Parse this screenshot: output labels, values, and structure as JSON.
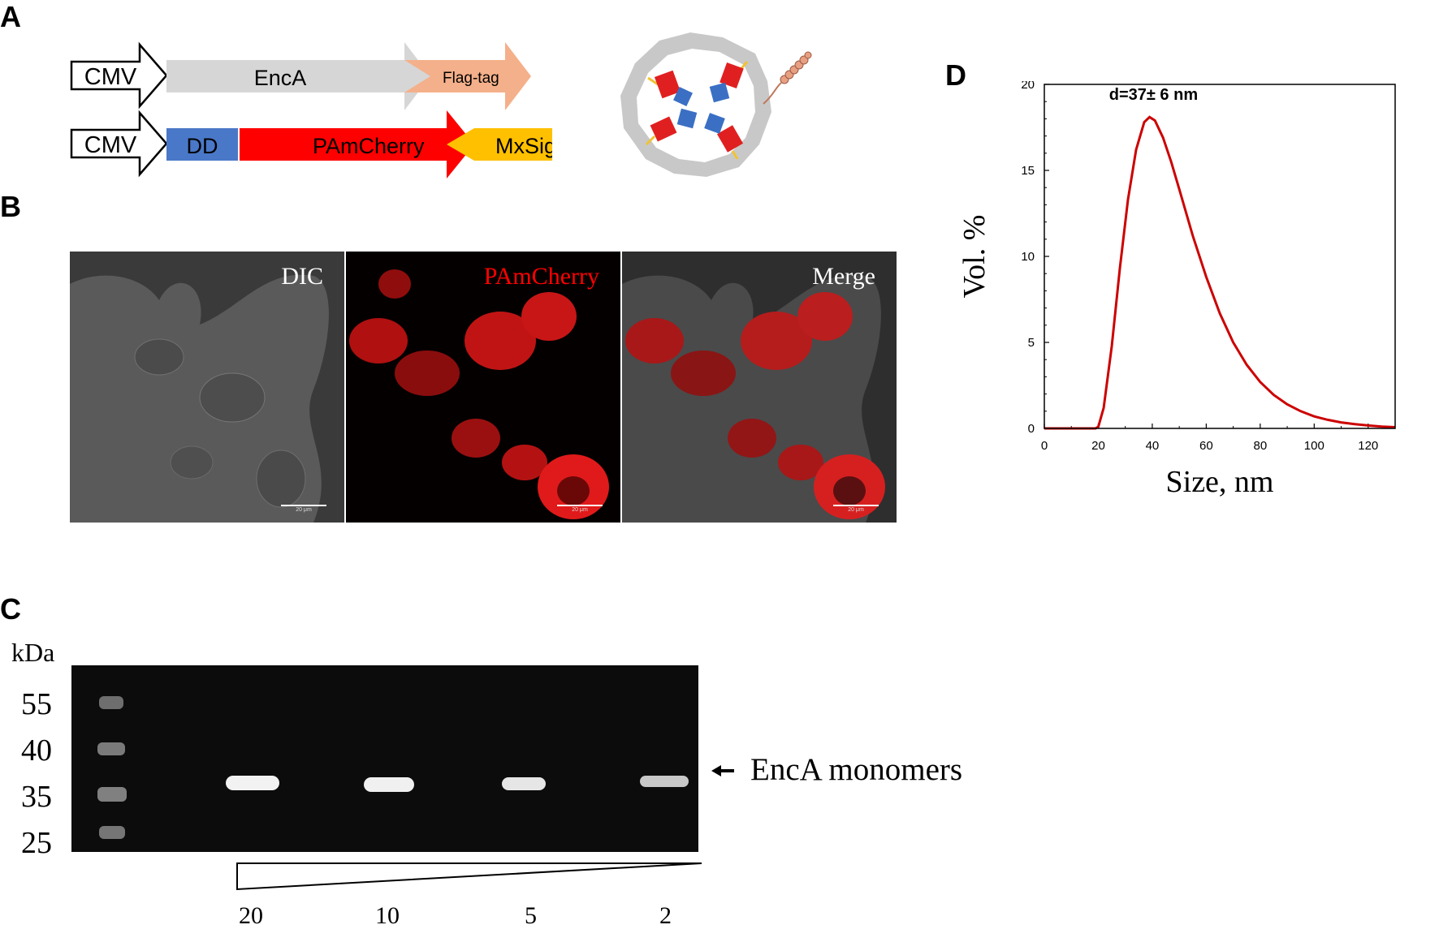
{
  "panels": {
    "a": "A",
    "b": "B",
    "c": "C",
    "d": "D"
  },
  "construct1": {
    "promoter": "CMV",
    "gene": "EncA",
    "tag": "Flag-tag"
  },
  "construct2": {
    "promoter": "CMV",
    "dd": "DD",
    "fp": "PAmCherry",
    "sig": "MxSig"
  },
  "micrographs": [
    {
      "label": "DIC",
      "scale": "20 μm"
    },
    {
      "label": "PAmCherry",
      "scale": "20 μm"
    },
    {
      "label": "Merge",
      "scale": "20 μm"
    }
  ],
  "gel": {
    "unit": "kDa",
    "markers": [
      "55",
      "40",
      "35",
      "25"
    ],
    "band_label": "EncA monomers",
    "lanes": [
      "20",
      "10",
      "5",
      "2"
    ]
  },
  "colors": {
    "encA": "#d6d6d6",
    "flag": "#f4b08a",
    "dd": "#4a78c8",
    "fp": "#ff0000",
    "sig": "#ffc000",
    "curve": "#cc0000"
  },
  "chart_data": {
    "type": "line",
    "annotation": "d=37± 6 nm",
    "xlabel": "Size, nm",
    "ylabel": "Vol. %",
    "xlim": [
      0,
      130
    ],
    "ylim": [
      0,
      20
    ],
    "xticks": [
      "0",
      "20",
      "40",
      "60",
      "80",
      "100",
      "120"
    ],
    "yticks": [
      "0",
      "5",
      "10",
      "15",
      "20"
    ],
    "series": [
      {
        "x": [
          0,
          19,
          20,
          22,
          25,
          28,
          31,
          34,
          37,
          39,
          41,
          44,
          47,
          50,
          55,
          60,
          65,
          70,
          75,
          80,
          85,
          90,
          95,
          100,
          105,
          110,
          115,
          120,
          125,
          130
        ],
        "values": [
          0,
          0,
          0.1,
          1.2,
          4.8,
          9.3,
          13.3,
          16.2,
          17.8,
          18.1,
          17.9,
          16.9,
          15.5,
          13.9,
          11.2,
          8.8,
          6.7,
          5.0,
          3.7,
          2.7,
          1.95,
          1.4,
          1.0,
          0.7,
          0.5,
          0.35,
          0.25,
          0.17,
          0.11,
          0.07
        ]
      }
    ]
  }
}
